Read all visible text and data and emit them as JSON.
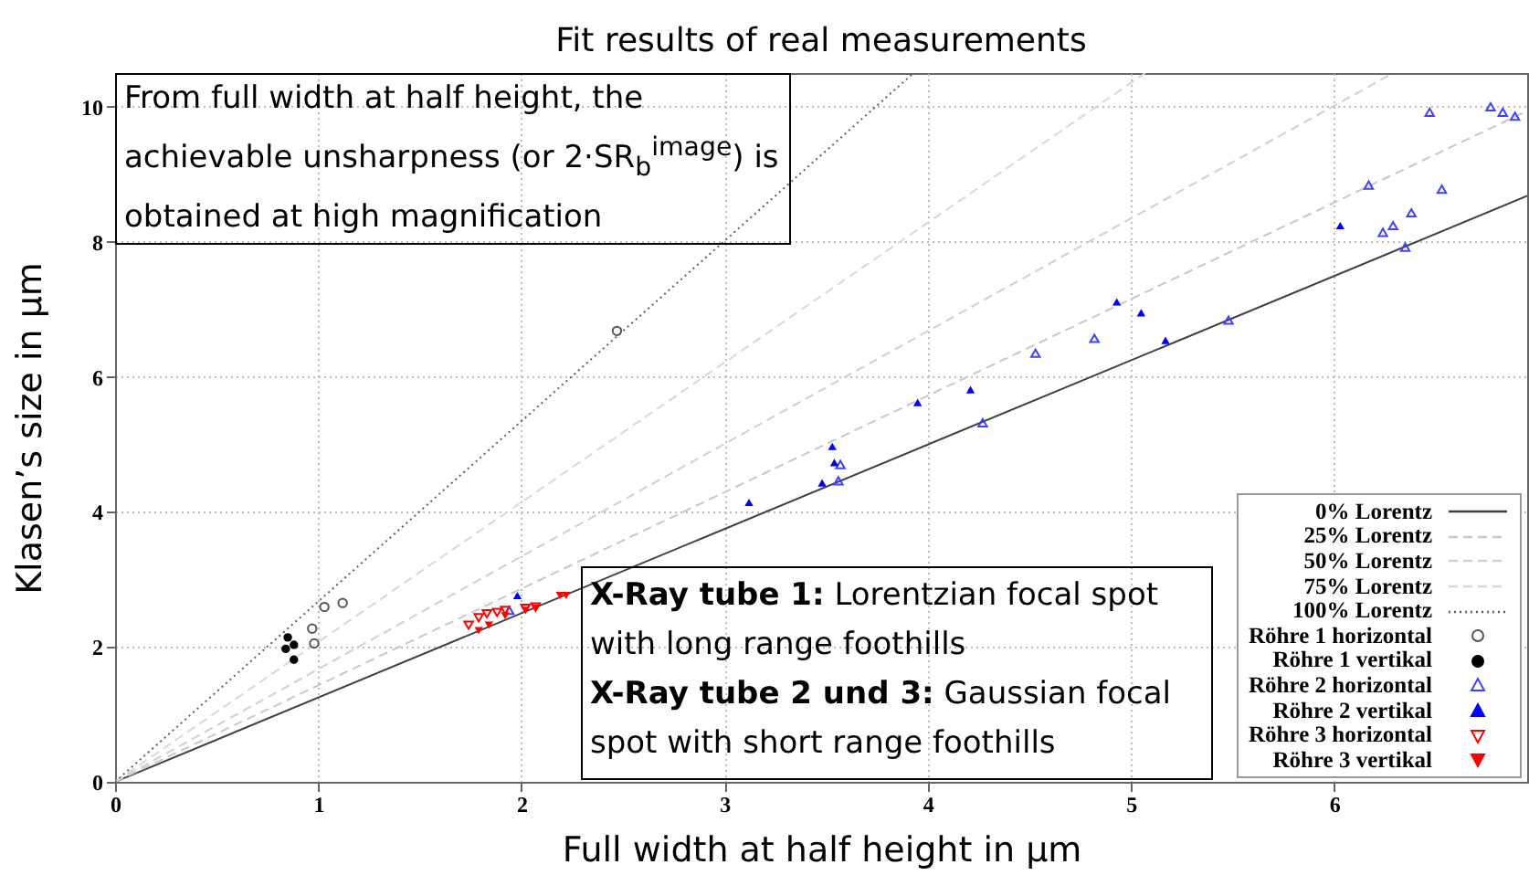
{
  "chart_data": {
    "type": "scatter",
    "title": "Fit results of real measurements",
    "xlabel": "Full width at half height in µm",
    "ylabel": "Klasen’s size in µm",
    "xlim": [
      0,
      6.95
    ],
    "ylim": [
      0,
      10.5
    ],
    "xticks": [
      0,
      1,
      2,
      3,
      4,
      5,
      6
    ],
    "yticks": [
      0,
      2,
      4,
      6,
      8,
      10
    ],
    "grid": true,
    "legend": "bottom right",
    "annotations": [
      "From full width at half height, the achievable unsharpness (or 2·SR$_{b}$$^{image}$) is obtained at high magnification",
      "X-Ray tube 1: Lorentzian focal spot with long range foothills",
      "X-Ray tube 2 und 3: Gaussian focal spot with short range foothills"
    ],
    "series": [
      {
        "name": "0% Lorentz",
        "type": "line",
        "color": "#404040",
        "line_style": "solid",
        "x": [
          0,
          6.95
        ],
        "values": [
          0,
          8.68
        ]
      },
      {
        "name": "25% Lorentz",
        "type": "line",
        "color": "#c8c8c8",
        "line_style": "dashed",
        "x": [
          0,
          6.95
        ],
        "values": [
          0,
          9.94
        ]
      },
      {
        "name": "50% Lorentz",
        "type": "line",
        "color": "#d0d0d0",
        "line_style": "dashed",
        "x": [
          0,
          6.29
        ],
        "values": [
          0,
          10.5
        ]
      },
      {
        "name": "75% Lorentz",
        "type": "line",
        "color": "#d8d8d8",
        "line_style": "dashed",
        "x": [
          0,
          5.07
        ],
        "values": [
          0,
          10.5
        ]
      },
      {
        "name": "100% Lorentz",
        "type": "line",
        "color": "#606060",
        "line_style": "dotted",
        "x": [
          0,
          3.93
        ],
        "values": [
          0,
          10.5
        ]
      },
      {
        "name": "Röhre 1 horizontal",
        "color": "#555555",
        "marker": "circle-open",
        "x": [
          2.47,
          1.03,
          1.12,
          0.97,
          0.98
        ],
        "values": [
          6.68,
          2.59,
          2.65,
          2.27,
          2.05
        ]
      },
      {
        "name": "Röhre 1 vertikal",
        "color": "#000000",
        "marker": "circle",
        "x": [
          0.85,
          0.84,
          0.88,
          0.88
        ],
        "values": [
          2.14,
          1.97,
          2.03,
          1.81
        ]
      },
      {
        "name": "Röhre 2 horizontal",
        "color": "#4040ff",
        "marker": "triangle-open",
        "x": [
          6.47,
          6.77,
          6.83,
          6.89,
          6.17,
          6.53,
          6.24,
          6.29,
          6.38,
          6.35,
          5.48,
          4.82,
          4.53,
          4.27,
          3.57,
          3.56,
          1.94
        ],
        "values": [
          9.92,
          10.0,
          9.92,
          9.86,
          8.84,
          8.78,
          8.14,
          8.24,
          8.43,
          7.92,
          6.84,
          6.57,
          6.35,
          5.32,
          4.7,
          4.46,
          2.54
        ]
      },
      {
        "name": "Röhre 2 vertikal",
        "color": "#0000ff",
        "marker": "triangle",
        "x": [
          6.03,
          4.93,
          5.05,
          5.17,
          4.21,
          3.95,
          3.53,
          3.54,
          3.48,
          3.12,
          1.98
        ],
        "values": [
          8.24,
          7.11,
          6.95,
          6.54,
          5.81,
          5.62,
          4.97,
          4.73,
          4.43,
          4.14,
          2.76
        ]
      },
      {
        "name": "Röhre 3 horizontal",
        "color": "#ff0000",
        "marker": "triangle-down-open",
        "x": [
          1.74,
          1.79,
          1.83,
          1.88,
          1.92,
          2.02,
          2.07
        ],
        "values": [
          2.32,
          2.43,
          2.49,
          2.51,
          2.54,
          2.57,
          2.59
        ]
      },
      {
        "name": "Röhre 3 vertikal",
        "color": "#ff0000",
        "marker": "triangle-down",
        "x": [
          1.79,
          1.84,
          1.92,
          2.02,
          2.07,
          2.19,
          2.22
        ],
        "values": [
          2.24,
          2.32,
          2.46,
          2.54,
          2.57,
          2.76,
          2.76
        ]
      }
    ]
  }
}
